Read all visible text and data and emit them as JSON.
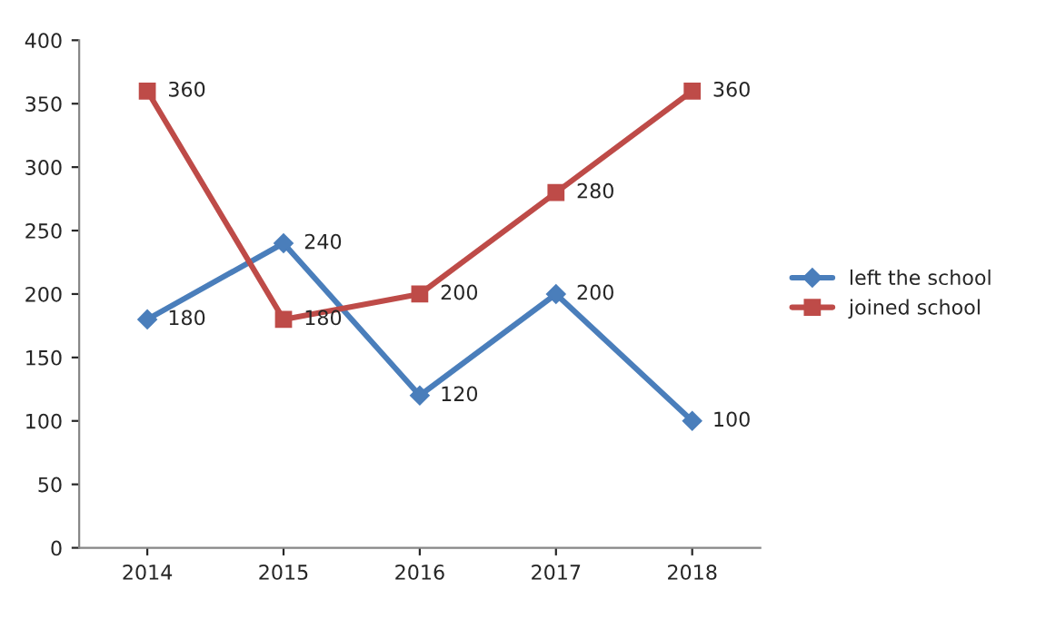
{
  "chart_data": {
    "type": "line",
    "categories": [
      "2014",
      "2015",
      "2016",
      "2017",
      "2018"
    ],
    "series": [
      {
        "name": "left the school",
        "color": "#4a7ebb",
        "marker": "diamond",
        "values": [
          180,
          240,
          120,
          200,
          100
        ]
      },
      {
        "name": "joined school",
        "color": "#be4b48",
        "marker": "square",
        "values": [
          360,
          180,
          200,
          280,
          360
        ]
      }
    ],
    "ylim": [
      0,
      400
    ],
    "yticks": [
      0,
      50,
      100,
      150,
      200,
      250,
      300,
      350,
      400
    ],
    "grid": false,
    "legend": "right",
    "data_labels": true,
    "line_style": "solid"
  }
}
